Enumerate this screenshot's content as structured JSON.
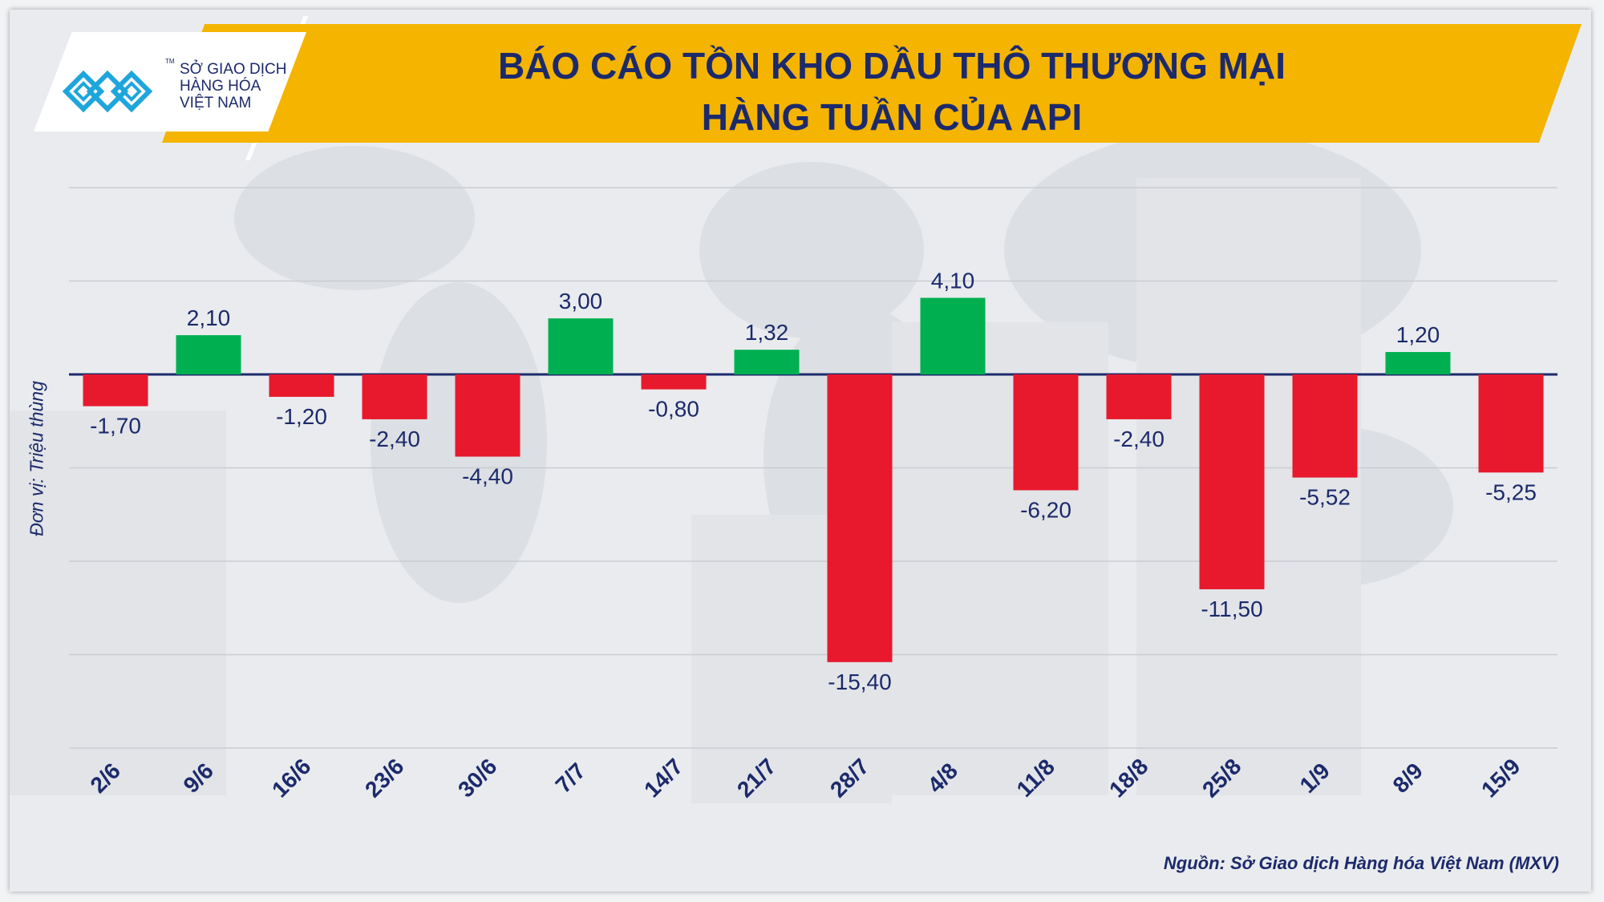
{
  "logo": {
    "line1": "SỞ GIAO DỊCH",
    "line2": "HÀNG HÓA",
    "line3": "VIỆT NAM",
    "tm": "TM",
    "icon": "mxv-logo-mark",
    "color": "#1ea6dc"
  },
  "title": {
    "line1": "BÁO CÁO TỒN KHO DẦU THÔ THƯƠNG MẠI",
    "line2": "HÀNG TUẦN CỦA API"
  },
  "unit_label": "Đơn vị: Triệu thùng",
  "source": "Nguồn: Sở Giao dịch Hàng hóa Việt Nam (MXV)",
  "colors": {
    "positive": "#00b050",
    "negative": "#e8192c",
    "text": "#1c2a6b",
    "banner": "#f4b400",
    "grid": "#c9ccd2"
  },
  "chart_data": {
    "type": "bar",
    "title": "BÁO CÁO TỒN KHO DẦU THÔ THƯƠNG MẠI HÀNG TUẦN CỦA API",
    "ylabel": "Đơn vị: Triệu thùng",
    "xlabel": "",
    "ylim": [
      -20,
      10
    ],
    "grid": true,
    "y_gridlines": [
      -20,
      -15,
      -10,
      -5,
      0,
      5,
      10
    ],
    "categories": [
      "2/6",
      "9/6",
      "16/6",
      "23/6",
      "30/6",
      "7/7",
      "14/7",
      "21/7",
      "28/7",
      "4/8",
      "11/8",
      "18/8",
      "25/8",
      "1/9",
      "8/9",
      "15/9"
    ],
    "values": [
      -1.7,
      2.1,
      -1.2,
      -2.4,
      -4.4,
      3.0,
      -0.8,
      1.32,
      -15.4,
      4.1,
      -6.2,
      -2.4,
      -11.5,
      -5.52,
      1.2,
      -5.25
    ],
    "value_labels": [
      "-1,70",
      "2,10",
      "-1,20",
      "-2,40",
      "-4,40",
      "3,00",
      "-0,80",
      "1,32",
      "-15,40",
      "4,10",
      "-6,20",
      "-2,40",
      "-11,50",
      "-5,52",
      "1,20",
      "-5,25"
    ]
  }
}
